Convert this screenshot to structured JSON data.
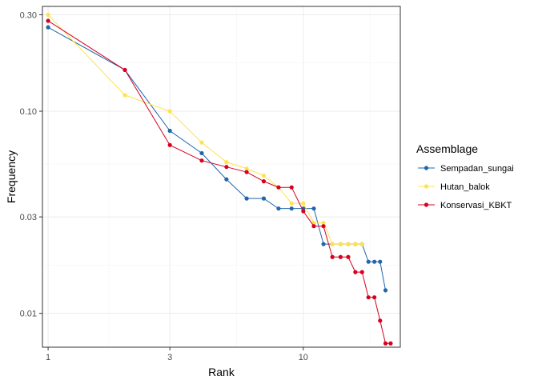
{
  "chart_data": {
    "type": "line",
    "xlabel": "Rank",
    "ylabel": "Frequency",
    "xscale": "log",
    "yscale": "log",
    "xlim": [
      0.95,
      24
    ],
    "ylim": [
      0.0068,
      0.33
    ],
    "xticks": [
      1,
      3,
      10
    ],
    "xtick_labels": [
      "1",
      "3",
      "10"
    ],
    "yticks": [
      0.01,
      0.03,
      0.1,
      0.3
    ],
    "ytick_labels": [
      "0.01",
      "0.03",
      "0.10",
      "0.30"
    ],
    "grid": true,
    "legend": {
      "title": "Assemblage",
      "position": "right"
    },
    "series": [
      {
        "name": "Sempadan_sungai",
        "color": "#2166ac",
        "x": [
          1,
          2,
          3,
          4,
          5,
          6,
          7,
          8,
          9,
          10,
          11,
          12,
          13,
          14,
          15,
          16,
          17,
          18,
          19,
          20,
          21
        ],
        "y": [
          0.26,
          0.16,
          0.08,
          0.062,
          0.046,
          0.037,
          0.037,
          0.033,
          0.033,
          0.033,
          0.033,
          0.022,
          0.022,
          0.022,
          0.022,
          0.022,
          0.022,
          0.018,
          0.018,
          0.018,
          0.013
        ]
      },
      {
        "name": "Hutan_balok",
        "color": "#ffe34d",
        "x": [
          1,
          2,
          3,
          4,
          5,
          6,
          7,
          8,
          9,
          10,
          11,
          12,
          13,
          14,
          15,
          16,
          17
        ],
        "y": [
          0.3,
          0.12,
          0.1,
          0.07,
          0.056,
          0.052,
          0.048,
          0.042,
          0.035,
          0.035,
          0.028,
          0.028,
          0.022,
          0.022,
          0.022,
          0.022,
          0.022
        ]
      },
      {
        "name": "Konservasi_KBKT",
        "color": "#d7001f",
        "x": [
          1,
          2,
          3,
          4,
          5,
          6,
          7,
          8,
          9,
          10,
          11,
          12,
          13,
          14,
          15,
          16,
          17,
          18,
          19,
          20,
          21,
          22
        ],
        "y": [
          0.28,
          0.16,
          0.068,
          0.057,
          0.053,
          0.05,
          0.045,
          0.042,
          0.042,
          0.032,
          0.027,
          0.027,
          0.019,
          0.019,
          0.019,
          0.016,
          0.016,
          0.012,
          0.012,
          0.0092,
          0.0071,
          0.0071
        ]
      }
    ]
  }
}
